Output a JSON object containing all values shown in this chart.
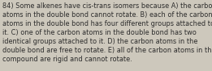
{
  "lines": [
    "84) Some alkenes have cis-trans isomers because A) the carbon",
    "atoms in the double bond cannot rotate. B) each of the carbon",
    "atoms in the double bond has four different groups attached to",
    "it. C) one of the carbon atoms in the double bond has two",
    "identical groups attached to it. D) the carbon atoms in the",
    "double bond are free to rotate. E) all of the carbon atoms in the",
    "compound are rigid and cannot rotate."
  ],
  "font_size": 5.85,
  "text_color": "#2c2c2c",
  "background_color": "#cdc8bc"
}
